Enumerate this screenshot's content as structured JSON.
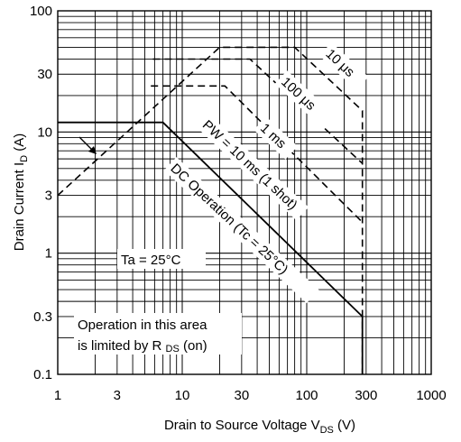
{
  "chart_data": {
    "type": "line",
    "title": "",
    "x_scale": "log",
    "y_scale": "log",
    "xlim": [
      1,
      1000
    ],
    "ylim": [
      0.1,
      100
    ],
    "grid": true,
    "x_ticks": [
      1,
      3,
      10,
      30,
      100,
      300,
      1000
    ],
    "x_tick_labels": [
      "1",
      "3",
      "10",
      "30",
      "100",
      "300",
      "1000"
    ],
    "y_ticks": [
      0.1,
      0.3,
      1,
      3,
      10,
      30,
      100
    ],
    "y_tick_labels": [
      "0.1",
      "0.3",
      "1",
      "3",
      "10",
      "30",
      "100"
    ],
    "xlabel": {
      "prefix": "Drain to Source Voltage V",
      "sub": "DS",
      "suffix": " (V)"
    },
    "ylabel": {
      "prefix": "Drain Current I",
      "sub": "D",
      "suffix": " (A)"
    },
    "series": [
      {
        "name": "10 μs",
        "style": "dashed",
        "x": [
          1,
          20,
          80,
          280,
          280
        ],
        "y": [
          3,
          50,
          50,
          15,
          0.1
        ]
      },
      {
        "name": "100 μs",
        "style": "dashed",
        "x": [
          5.8,
          35,
          280
        ],
        "y": [
          40,
          40,
          5.5
        ]
      },
      {
        "name": "1 ms",
        "style": "dashed",
        "x": [
          5.6,
          22,
          280
        ],
        "y": [
          24,
          24,
          1.8
        ]
      },
      {
        "name": "PW = 10 ms (1 shot)",
        "style": "dashed",
        "x": [
          280
        ],
        "y": [
          0.85
        ]
      },
      {
        "name": "DC Operation (Tc = 25°C)",
        "style": "solid",
        "x": [
          1,
          7,
          280,
          280
        ],
        "y": [
          12,
          12,
          0.3,
          0.1
        ]
      }
    ],
    "annotations": {
      "ta": "Ta = 25°C",
      "rds_line1": "Operation in this area",
      "rds_line2_prefix": "is limited by R",
      "rds_line2_sub": "DS",
      "rds_line2_suffix": " (on)"
    }
  }
}
